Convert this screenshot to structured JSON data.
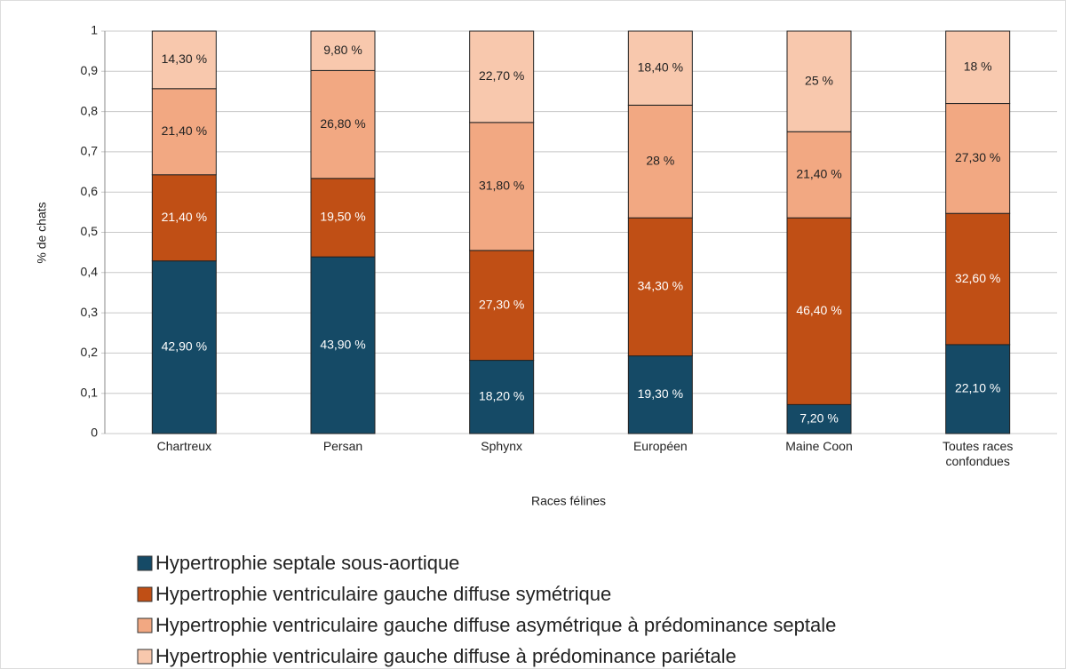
{
  "chart_data": {
    "type": "stacked_bar",
    "x_label": "Races félines",
    "y_label": "% de chats",
    "categories": [
      "Chartreux",
      "Persan",
      "Sphynx",
      "Européen",
      "Maine Coon",
      "Toutes races confondues"
    ],
    "series": [
      {
        "name": "Hypertrophie septale sous-aortique",
        "color": "#154a66",
        "values": [
          0.429,
          0.439,
          0.182,
          0.193,
          0.072,
          0.221
        ],
        "value_labels": [
          "42,90 %",
          "43,90 %",
          "18,20 %",
          "19,30 %",
          "7,20 %",
          "22,10 %"
        ]
      },
      {
        "name": "Hypertrophie ventriculaire gauche diffuse symétrique",
        "color": "#c04f15",
        "values": [
          0.214,
          0.195,
          0.273,
          0.343,
          0.464,
          0.326
        ],
        "value_labels": [
          "21,40 %",
          "19,50 %",
          "27,30 %",
          "34,30 %",
          "46,40 %",
          "32,60 %"
        ]
      },
      {
        "name": "Hypertrophie ventriculaire gauche diffuse asymétrique à prédominance septale",
        "color": "#f2a882",
        "values": [
          0.214,
          0.268,
          0.318,
          0.28,
          0.214,
          0.273
        ],
        "value_labels": [
          "21,40 %",
          "26,80 %",
          "31,80 %",
          "28 %",
          "21,40 %",
          "27,30 %"
        ]
      },
      {
        "name": "Hypertrophie ventriculaire gauche diffuse à prédominance pariétale",
        "color": "#f8c8ad",
        "values": [
          0.143,
          0.098,
          0.227,
          0.184,
          0.25,
          0.18
        ],
        "value_labels": [
          "14,30 %",
          "9,80 %",
          "22,70 %",
          "18,40 %",
          "25 %",
          "18 %"
        ]
      }
    ],
    "ylim": [
      0,
      1
    ],
    "yticks": [
      0,
      {
        "value": 0.1,
        "label": "0,1"
      },
      {
        "value": 0.2,
        "label": "0,2"
      },
      {
        "value": 0.3,
        "label": "0,3"
      },
      {
        "value": 0.4,
        "label": "0,4"
      },
      {
        "value": 0.5,
        "label": "0,5"
      },
      {
        "value": 0.6,
        "label": "0,6"
      },
      {
        "value": 0.7,
        "label": "0,7"
      },
      {
        "value": 0.8,
        "label": "0,8"
      },
      {
        "value": 0.9,
        "label": "0,9"
      },
      1
    ],
    "grid": true,
    "legend": "bottom"
  }
}
